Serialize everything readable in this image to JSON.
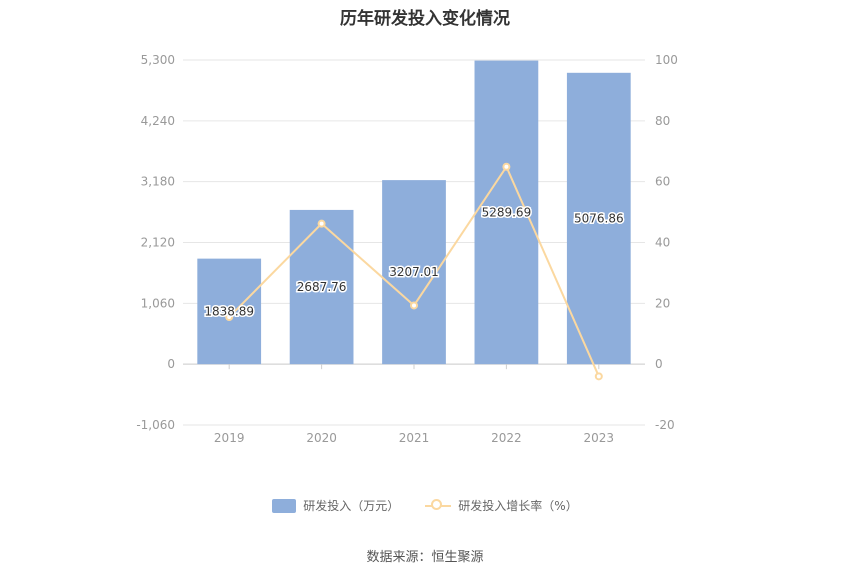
{
  "chart_data": {
    "type": "bar",
    "title": "历年研发投入变化情况",
    "categories": [
      "2019",
      "2020",
      "2021",
      "2022",
      "2023"
    ],
    "series": [
      {
        "name": "研发投入（万元）",
        "type": "bar",
        "axis": "left",
        "values": [
          1838.89,
          2687.76,
          3207.01,
          5289.69,
          5076.86
        ],
        "labels": [
          "1838.89",
          "2687.76",
          "3207.01",
          "5289.69",
          "5076.86"
        ]
      },
      {
        "name": "研发投入增长率（%）",
        "type": "line",
        "axis": "right",
        "values": [
          15.5,
          46.2,
          19.3,
          64.9,
          -4.0
        ]
      }
    ],
    "y_left": {
      "min": -1060,
      "max": 5300,
      "ticks": [
        5300,
        4240,
        3180,
        2120,
        1060,
        0,
        -1060
      ],
      "tick_labels": [
        "5,300",
        "4,240",
        "3,180",
        "2,120",
        "1,060",
        "0",
        "-1,060"
      ]
    },
    "y_right": {
      "min": -20,
      "max": 100,
      "ticks": [
        100,
        80,
        60,
        40,
        20,
        0,
        -20
      ],
      "tick_labels": [
        "100",
        "80",
        "60",
        "40",
        "20",
        "0",
        "-20"
      ]
    },
    "grid": true,
    "legend_position": "bottom",
    "colors": {
      "bar": "#8eaedb",
      "line": "#fbd8a0",
      "grid": "#e6e6e6",
      "axis_text": "#999999"
    }
  },
  "source": "数据来源：恒生聚源"
}
